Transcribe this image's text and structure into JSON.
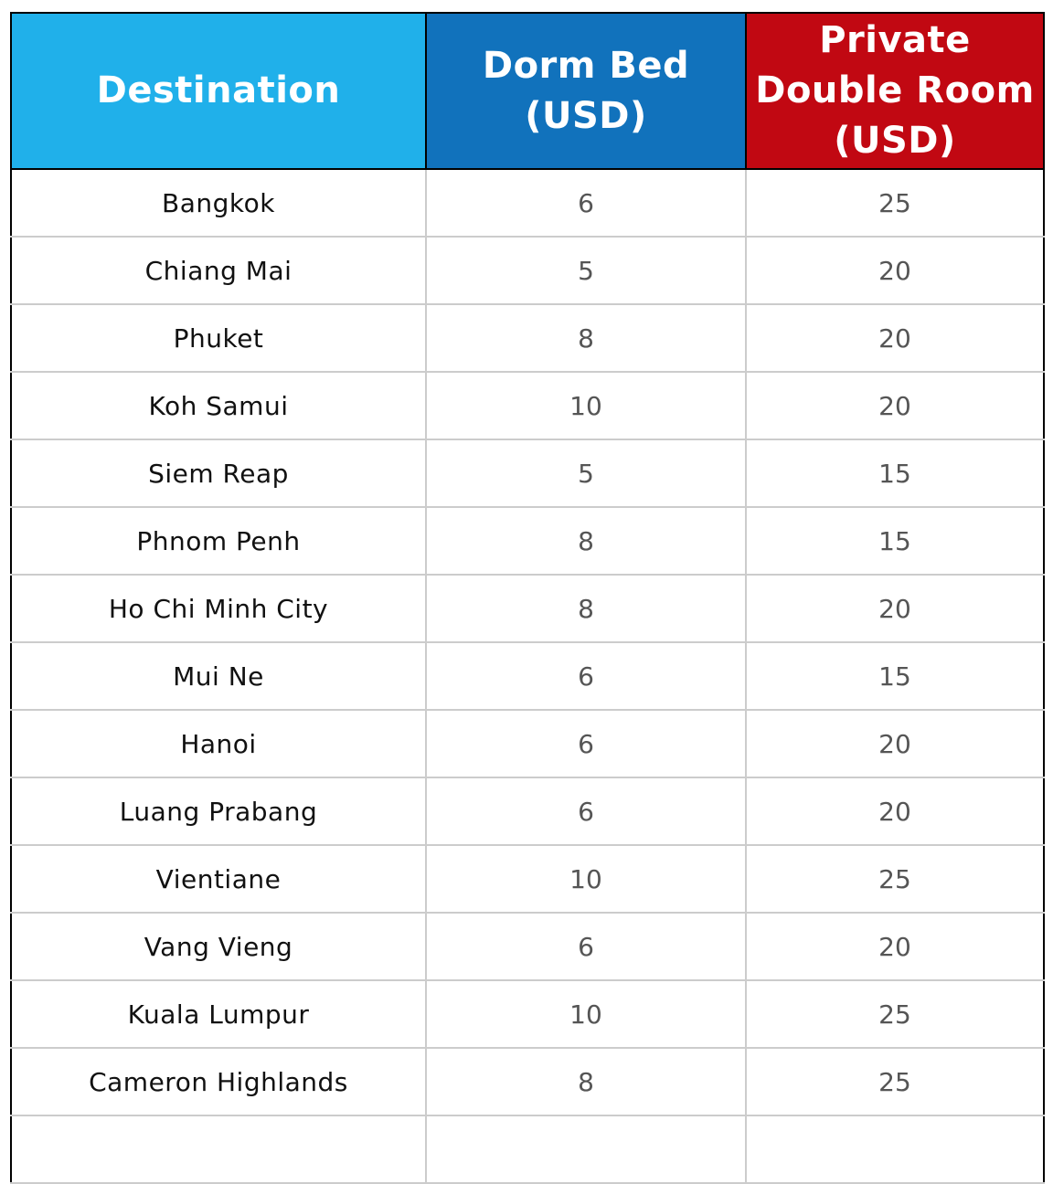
{
  "colors": {
    "destination_header": "#20b0ea",
    "dorm_header": "#1172bc",
    "private_header": "#c10812"
  },
  "headers": {
    "destination": "Destination",
    "dorm": [
      "Dorm Bed",
      "(USD)"
    ],
    "private": [
      "Private",
      "Double Room",
      "(USD)"
    ]
  },
  "rows": [
    {
      "destination": "Bangkok",
      "dorm": "6",
      "private": "25"
    },
    {
      "destination": "Chiang Mai",
      "dorm": "5",
      "private": "20"
    },
    {
      "destination": "Phuket",
      "dorm": "8",
      "private": "20"
    },
    {
      "destination": "Koh Samui",
      "dorm": "10",
      "private": "20"
    },
    {
      "destination": "Siem Reap",
      "dorm": "5",
      "private": "15"
    },
    {
      "destination": "Phnom Penh",
      "dorm": "8",
      "private": "15"
    },
    {
      "destination": "Ho Chi Minh City",
      "dorm": "8",
      "private": "20"
    },
    {
      "destination": "Mui Ne",
      "dorm": "6",
      "private": "15"
    },
    {
      "destination": "Hanoi",
      "dorm": "6",
      "private": "20"
    },
    {
      "destination": "Luang Prabang",
      "dorm": "6",
      "private": "20"
    },
    {
      "destination": "Vientiane",
      "dorm": "10",
      "private": "25"
    },
    {
      "destination": "Vang Vieng",
      "dorm": "6",
      "private": "20"
    },
    {
      "destination": "Kuala Lumpur",
      "dorm": "10",
      "private": "25"
    },
    {
      "destination": "Cameron Highlands",
      "dorm": "8",
      "private": "25"
    }
  ]
}
